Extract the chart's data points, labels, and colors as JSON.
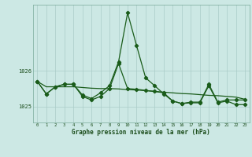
{
  "title": "Graphe pression niveau de la mer (hPa)",
  "background_color": "#cce8e4",
  "plot_bg_color": "#cce8e4",
  "line_color": "#1a5c1a",
  "marker_color": "#1a5c1a",
  "grid_color": "#aaccc8",
  "text_color": "#1a4c1a",
  "ylim": [
    1024.55,
    1027.85
  ],
  "yticks": [
    1025,
    1026
  ],
  "xlim": [
    -0.5,
    23.5
  ],
  "xticks": [
    0,
    1,
    2,
    3,
    4,
    5,
    6,
    7,
    8,
    9,
    10,
    11,
    12,
    13,
    14,
    15,
    16,
    17,
    18,
    19,
    20,
    21,
    22,
    23
  ],
  "s1": [
    1025.7,
    1025.35,
    1025.55,
    1025.62,
    1025.62,
    1025.32,
    1025.22,
    1025.38,
    1025.58,
    1026.25,
    1027.62,
    1026.7,
    1025.8,
    1025.58,
    1025.35,
    1025.15,
    1025.08,
    1025.12,
    1025.12,
    1025.62,
    1025.12,
    1025.18,
    1025.18,
    1025.18
  ],
  "s2": [
    1025.7,
    1025.55,
    1025.55,
    1025.55,
    1025.55,
    1025.53,
    1025.51,
    1025.5,
    1025.5,
    1025.49,
    1025.47,
    1025.46,
    1025.44,
    1025.42,
    1025.4,
    1025.38,
    1025.36,
    1025.35,
    1025.33,
    1025.31,
    1025.3,
    1025.28,
    1025.26,
    1025.2
  ],
  "s3": [
    1025.7,
    1025.35,
    1025.55,
    1025.62,
    1025.62,
    1025.28,
    1025.18,
    1025.28,
    1025.5,
    1026.2,
    1025.5,
    1025.48,
    1025.45,
    1025.42,
    1025.38,
    1025.15,
    1025.08,
    1025.1,
    1025.1,
    1025.58,
    1025.1,
    1025.15,
    1025.05,
    1025.05
  ],
  "hours": [
    0,
    1,
    2,
    3,
    4,
    5,
    6,
    7,
    8,
    9,
    10,
    11,
    12,
    13,
    14,
    15,
    16,
    17,
    18,
    19,
    20,
    21,
    22,
    23
  ]
}
